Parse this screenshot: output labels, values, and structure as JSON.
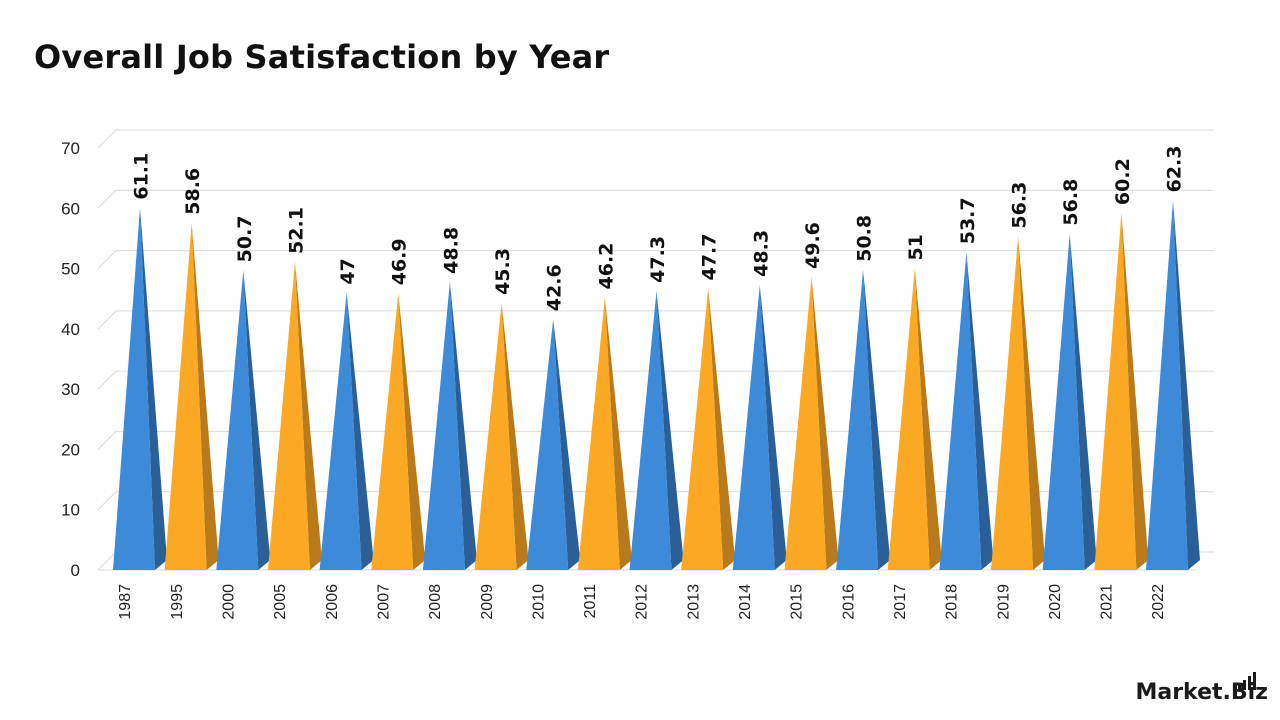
{
  "title": "Overall Job Satisfaction by Year",
  "logo": {
    "text": "Market.Biz"
  },
  "colors": {
    "blue": "#3c8ad8",
    "blue_dark": "#2a5f97",
    "orange": "#fba925",
    "orange_dark": "#b97a1b",
    "grid": "#d9d9d9",
    "axis_text": "#222222",
    "label_text": "#111111"
  },
  "chart_data": {
    "type": "bar",
    "shape": "3d-pyramid",
    "title": "Overall Job Satisfaction by Year",
    "categories": [
      "1987",
      "1995",
      "2000",
      "2005",
      "2006",
      "2007",
      "2008",
      "2009",
      "2010",
      "2011",
      "2012",
      "2013",
      "2014",
      "2015",
      "2016",
      "2017",
      "2018",
      "2019",
      "2020",
      "2021",
      "2022"
    ],
    "series": [
      {
        "values": [
          61.1,
          58.6,
          50.7,
          52.1,
          47,
          46.9,
          48.8,
          45.3,
          42.6,
          46.2,
          47.3,
          47.7,
          48.3,
          49.6,
          50.8,
          51,
          53.7,
          56.3,
          56.8,
          60.2,
          62.3
        ]
      }
    ],
    "bar_colors": [
      "blue",
      "orange",
      "blue",
      "orange",
      "blue",
      "orange",
      "blue",
      "orange",
      "blue",
      "orange",
      "blue",
      "orange",
      "blue",
      "orange",
      "blue",
      "orange",
      "blue",
      "orange",
      "blue",
      "orange",
      "blue"
    ],
    "y_ticks": [
      0,
      10,
      20,
      30,
      40,
      50,
      60,
      70
    ],
    "ylim": [
      0,
      70
    ],
    "xlabel": "",
    "ylabel": "",
    "grid": true,
    "data_labels": true,
    "legend": false
  }
}
